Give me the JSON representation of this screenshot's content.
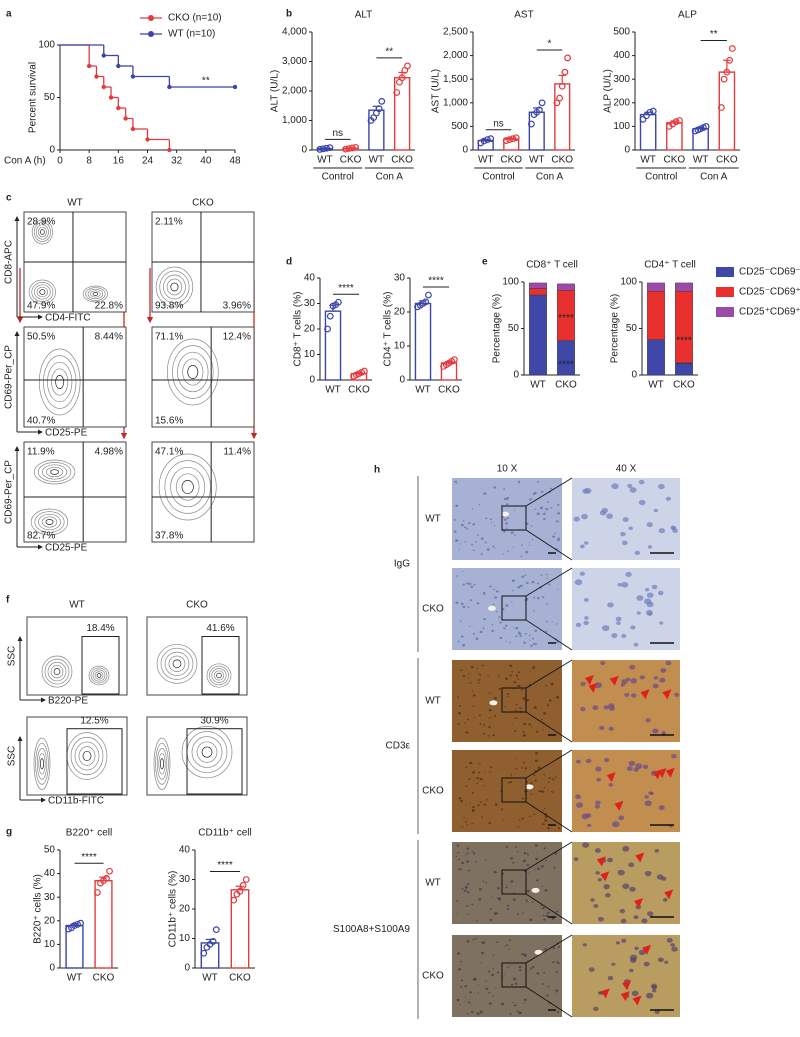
{
  "panel_labels": [
    "a",
    "b",
    "c",
    "d",
    "e",
    "f",
    "g",
    "h"
  ],
  "chart_data": [
    {
      "type": "step",
      "xlabel": "Con A (h)",
      "ylabel": "Percent survival",
      "xlim": [
        0,
        48
      ],
      "ylim": [
        0,
        100
      ],
      "xticks": [
        0,
        8,
        16,
        24,
        32,
        40,
        48
      ],
      "yticks": [
        0,
        50,
        100
      ],
      "series": [
        {
          "name": "CKO (n=10)",
          "color": "#e23b3e",
          "x": [
            0,
            8,
            10,
            12,
            14,
            16,
            18,
            20,
            24,
            30
          ],
          "values": [
            100,
            80,
            70,
            60,
            50,
            40,
            30,
            20,
            10,
            0
          ]
        },
        {
          "name": "WT (n=10)",
          "color": "#3b45a8",
          "x": [
            0,
            12,
            16,
            20,
            30,
            48
          ],
          "values": [
            100,
            90,
            80,
            70,
            60,
            60
          ]
        }
      ],
      "annotation": "**"
    },
    {
      "type": "bar",
      "title": "ALT",
      "ylabel": "ALT (U/L)",
      "categories": [
        "WT",
        "CKO",
        "WT",
        "CKO"
      ],
      "groups": [
        "Control",
        "Con A"
      ],
      "colors": [
        "#3b45a8",
        "#e23b3e",
        "#3b45a8",
        "#e23b3e"
      ],
      "values": [
        50,
        60,
        1350,
        2450
      ],
      "errors": [
        15,
        15,
        130,
        180
      ],
      "points": [
        [
          20,
          40,
          60,
          80
        ],
        [
          30,
          50,
          70,
          90
        ],
        [
          1000,
          1100,
          1250,
          1400,
          1650
        ],
        [
          1950,
          2300,
          2450,
          2700,
          2850
        ]
      ],
      "significance": [
        "ns",
        "**"
      ],
      "ylim": [
        0,
        4000
      ],
      "yticks": [
        0,
        {
          "value": 1000,
          "label": "1,000"
        },
        {
          "value": 2000,
          "label": "2,000"
        },
        {
          "value": 3000,
          "label": "3,000"
        },
        {
          "value": 4000,
          "label": "4,000"
        }
      ]
    },
    {
      "type": "bar",
      "title": "AST",
      "ylabel": "AST (U/L)",
      "categories": [
        "WT",
        "CKO",
        "WT",
        "CKO"
      ],
      "groups": [
        "Control",
        "Con A"
      ],
      "colors": [
        "#3b45a8",
        "#e23b3e",
        "#3b45a8",
        "#e23b3e"
      ],
      "values": [
        200,
        230,
        800,
        1400
      ],
      "errors": [
        20,
        20,
        90,
        180
      ],
      "points": [
        [
          150,
          190,
          220,
          240
        ],
        [
          200,
          220,
          240,
          260
        ],
        [
          550,
          750,
          800,
          850,
          1000
        ],
        [
          1000,
          1100,
          1350,
          1650,
          1950
        ]
      ],
      "significance": [
        "ns",
        "*"
      ],
      "ylim": [
        0,
        2500
      ],
      "yticks": [
        0,
        500,
        {
          "value": 1000,
          "label": "1,000"
        },
        {
          "value": 1500,
          "label": "1,500"
        },
        {
          "value": 2000,
          "label": "2,000"
        },
        {
          "value": 2500,
          "label": "2,500"
        }
      ]
    },
    {
      "type": "bar",
      "title": "ALP",
      "ylabel": "ALP (U/L)",
      "categories": [
        "WT",
        "CKO",
        "WT",
        "CKO"
      ],
      "groups": [
        "Control",
        "Con A"
      ],
      "colors": [
        "#3b45a8",
        "#e23b3e",
        "#3b45a8",
        "#e23b3e"
      ],
      "values": [
        150,
        115,
        90,
        330
      ],
      "errors": [
        10,
        8,
        5,
        50
      ],
      "points": [
        [
          130,
          145,
          160,
          165
        ],
        [
          100,
          110,
          120,
          125
        ],
        [
          80,
          85,
          90,
          95,
          100
        ],
        [
          180,
          300,
          330,
          380,
          430
        ]
      ],
      "significance": [
        null,
        "**"
      ],
      "ylim": [
        0,
        500
      ],
      "yticks": [
        0,
        100,
        200,
        300,
        400,
        500
      ]
    },
    {
      "type": "bar",
      "ylabel": "CD8⁺ T cells (%)",
      "categories": [
        "WT",
        "CKO"
      ],
      "colors": [
        "#3b45a8",
        "#e23b3e"
      ],
      "values": [
        27,
        2.5
      ],
      "errors": [
        2.3,
        0.4
      ],
      "points": [
        [
          20,
          25,
          29,
          29.5,
          30.5
        ],
        [
          1.5,
          2,
          2.5,
          3,
          3.5
        ]
      ],
      "significance": [
        "****"
      ],
      "ylim": [
        0,
        40
      ],
      "yticks": [
        0,
        10,
        20,
        30,
        40
      ]
    },
    {
      "type": "bar",
      "ylabel": "CD4⁺ T cells (%)",
      "categories": [
        "WT",
        "CKO"
      ],
      "colors": [
        "#3b45a8",
        "#e23b3e"
      ],
      "values": [
        22.5,
        5
      ],
      "errors": [
        0.8,
        0.4
      ],
      "points": [
        [
          21.5,
          22,
          22.5,
          23,
          25
        ],
        [
          4,
          4.5,
          5,
          5.5,
          6
        ]
      ],
      "significance": [
        "****"
      ],
      "ylim": [
        0,
        30
      ],
      "yticks": [
        0,
        10,
        20,
        30
      ]
    },
    {
      "type": "stacked_bar",
      "title": "CD8⁺ T cell",
      "ylabel": "Percentage (%)",
      "categories": [
        "WT",
        "CKO"
      ],
      "legend": "right",
      "series": [
        {
          "name": "CD25⁻CD69⁻",
          "color": "#3f48a8",
          "values": [
            86,
            37
          ],
          "significance": [
            null,
            "****"
          ]
        },
        {
          "name": "CD25⁻CD69⁺",
          "color": "#e8302f",
          "values": [
            7,
            54
          ],
          "significance": [
            null,
            "****"
          ]
        },
        {
          "name": "CD25⁺CD69⁺",
          "color": "#9b4aa8",
          "values": [
            6,
            7
          ]
        }
      ],
      "ylim": [
        0,
        100
      ],
      "yticks": [
        0,
        50,
        100
      ]
    },
    {
      "type": "stacked_bar",
      "title": "CD4⁺ T cell",
      "ylabel": "Percentage (%)",
      "categories": [
        "WT",
        "CKO"
      ],
      "series": [
        {
          "color": "#3f48a8",
          "values": [
            38,
            13
          ],
          "significance": [
            null,
            "****"
          ]
        },
        {
          "color": "#e8302f",
          "values": [
            52,
            77
          ],
          "significance": [
            null,
            "****"
          ]
        },
        {
          "color": "#9b4aa8",
          "values": [
            9,
            9
          ]
        }
      ],
      "ylim": [
        0,
        100
      ],
      "yticks": [
        0,
        50,
        100
      ]
    },
    {
      "type": "bar",
      "title": "B220⁺ cell",
      "ylabel": "B220⁺ cells (%)",
      "categories": [
        "WT",
        "CKO"
      ],
      "colors": [
        "#3b45a8",
        "#e23b3e"
      ],
      "values": [
        18,
        37
      ],
      "errors": [
        0.6,
        1.5
      ],
      "points": [
        [
          16.5,
          17,
          18,
          18.5,
          19
        ],
        [
          32,
          36,
          37,
          38,
          41
        ]
      ],
      "significance": [
        "****"
      ],
      "ylim": [
        0,
        50
      ],
      "yticks": [
        0,
        10,
        20,
        30,
        40,
        50
      ]
    },
    {
      "type": "bar",
      "title": "CD11b⁺ cell",
      "ylabel": "CD11b⁺ cells (%)",
      "categories": [
        "WT",
        "CKO"
      ],
      "colors": [
        "#3b45a8",
        "#e23b3e"
      ],
      "values": [
        8.5,
        26.5
      ],
      "errors": [
        1.2,
        1.2
      ],
      "points": [
        [
          5,
          7,
          8,
          9,
          13
        ],
        [
          23,
          25,
          26,
          28,
          30
        ]
      ],
      "significance": [
        "****"
      ],
      "ylim": [
        0,
        40
      ],
      "yticks": [
        0,
        10,
        20,
        30,
        40
      ]
    }
  ],
  "flow_cytometry_c": {
    "columns": [
      "WT",
      "CKO"
    ],
    "rows": [
      {
        "ylabel": "CD8-APC",
        "xlabel": "CD4-FITC",
        "plots": [
          {
            "top_left": "28.9%",
            "bottom_left": "47.9%",
            "bottom_right": "22.8%"
          },
          {
            "top_left": "2.11%",
            "bottom_left": "93.8%",
            "bottom_right": "3.96%"
          }
        ]
      },
      {
        "ylabel": "CD69-Per_CP",
        "xlabel": "CD25-PE",
        "plots": [
          {
            "top_left": "50.5%",
            "top_right": "8.44%",
            "bottom_left": "40.7%"
          },
          {
            "top_left": "71.1%",
            "top_right": "12.4%",
            "bottom_left": "15.6%"
          }
        ]
      },
      {
        "ylabel": "CD69-Per_CP",
        "xlabel": "CD25-PE",
        "plots": [
          {
            "top_left": "11.9%",
            "top_right": "4.98%",
            "bottom_left": "82.7%"
          },
          {
            "top_left": "47.1%",
            "top_right": "11.4%",
            "bottom_left": "37.8%"
          }
        ]
      }
    ]
  },
  "flow_cytometry_f": {
    "columns": [
      "WT",
      "CKO"
    ],
    "rows": [
      {
        "ylabel": "SSC",
        "xlabel": "B220-PE",
        "gates": [
          "18.4%",
          "41.6%"
        ]
      },
      {
        "ylabel": "SSC",
        "xlabel": "CD11b-FITC",
        "gates": [
          "12.5%",
          "30.9%"
        ]
      }
    ]
  },
  "histology": {
    "columns": [
      "10 X",
      "40 X"
    ],
    "groups": [
      {
        "label": "IgG",
        "rows": [
          "WT",
          "CKO"
        ]
      },
      {
        "label": "CD3ε",
        "rows": [
          "WT",
          "CKO"
        ]
      },
      {
        "label": "S100A8+S100A9",
        "rows": [
          "WT",
          "CKO"
        ]
      }
    ]
  }
}
